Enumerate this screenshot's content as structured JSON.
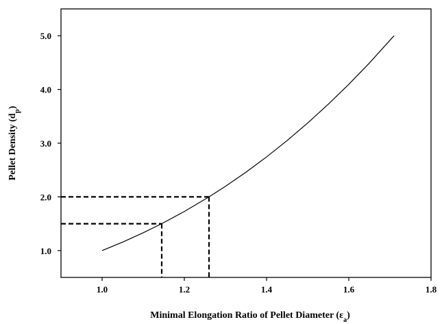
{
  "chart_data": {
    "type": "line",
    "xlabel": "Minimal Elongation Ratio of Pellet Diameter (ε",
    "xlabel_sub": "a",
    "xlabel_close": ")",
    "ylabel": "Pellet Density (d",
    "ylabel_sub": "p",
    "ylabel_close": ")",
    "xlim": [
      0.9,
      1.8
    ],
    "ylim": [
      0.5,
      5.5
    ],
    "x_ticks": [
      "1.0",
      "1.2",
      "1.4",
      "1.6",
      "1.8"
    ],
    "x_tick_values": [
      1.0,
      1.2,
      1.4,
      1.6,
      1.8
    ],
    "y_ticks": [
      "1.0",
      "2.0",
      "3.0",
      "4.0",
      "5.0"
    ],
    "y_tick_values": [
      1.0,
      2.0,
      3.0,
      4.0,
      5.0
    ],
    "series": [
      {
        "x": [
          1.0,
          1.05,
          1.1,
          1.145,
          1.2,
          1.26,
          1.3,
          1.35,
          1.4,
          1.45,
          1.5,
          1.55,
          1.6,
          1.65,
          1.71
        ],
        "y": [
          1.0,
          1.158,
          1.331,
          1.501,
          1.728,
          2.0,
          2.197,
          2.46,
          2.744,
          3.049,
          3.375,
          3.724,
          4.096,
          4.492,
          5.0
        ]
      }
    ],
    "reference_lines": [
      {
        "x": 1.145,
        "y": 1.5
      },
      {
        "x": 1.26,
        "y": 2.0
      }
    ],
    "grid": false,
    "legend": "none"
  }
}
